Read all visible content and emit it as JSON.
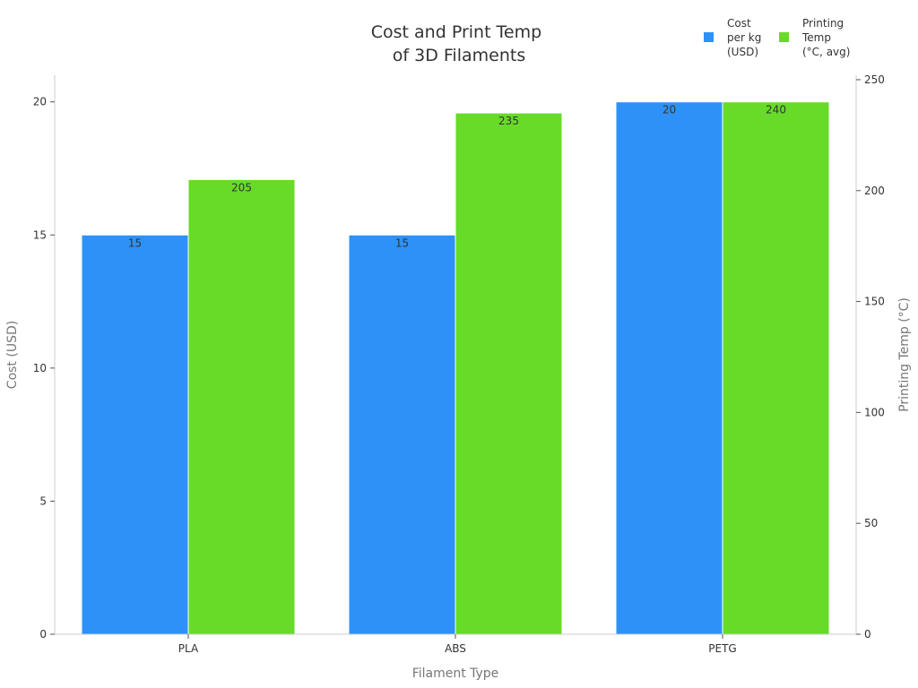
{
  "chart_data": {
    "type": "bar",
    "title_lines": [
      "Cost and Print Temp",
      "of 3D Filaments"
    ],
    "xlabel": "Filament Type",
    "ylabel_left": "Cost (USD)",
    "ylabel_right": "Printing Temp (°C)",
    "categories": [
      "PLA",
      "ABS",
      "PETG"
    ],
    "series": [
      {
        "name": "Cost per kg (USD)",
        "legend_lines": [
          "Cost",
          "per kg",
          "(USD)"
        ],
        "axis": "left",
        "color": "#2E91F7",
        "values": [
          15,
          15,
          20
        ]
      },
      {
        "name": "Printing Temp (°C, avg)",
        "legend_lines": [
          "Printing",
          "Temp",
          "(°C, avg)"
        ],
        "axis": "right",
        "color": "#67DB28",
        "values": [
          205,
          235,
          240
        ]
      }
    ],
    "ylim_left": [
      0,
      21
    ],
    "ylim_right": [
      0,
      252
    ],
    "yticks_left": [
      0,
      5,
      10,
      15,
      20
    ],
    "yticks_right": [
      0,
      50,
      100,
      150,
      200,
      250
    ],
    "grid": false,
    "legend_position": "top-right"
  }
}
